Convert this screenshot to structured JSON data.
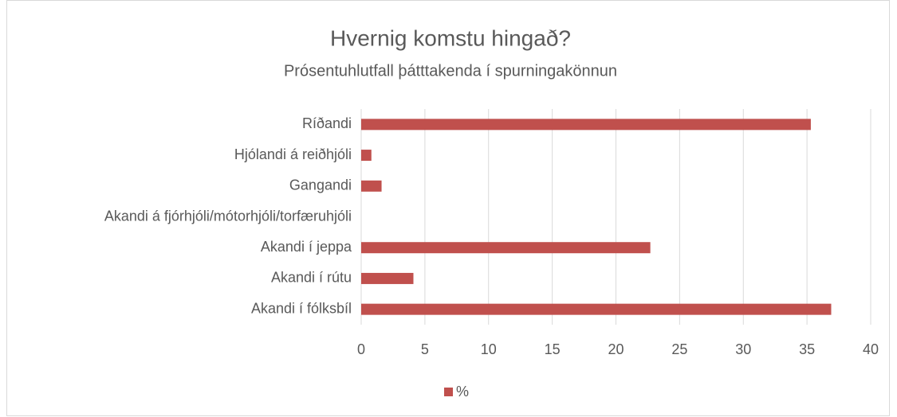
{
  "chart_data": {
    "type": "bar",
    "orientation": "horizontal",
    "title": "Hvernig komstu hingað?",
    "subtitle": "Prósentuhlutfall þátttakenda í spurningakönnun",
    "categories": [
      "Ríðandi",
      "Hjólandi á reiðhjóli",
      "Gangandi",
      "Akandi á fjórhjóli/mótorhjóli/torfæruhjóli",
      "Akandi í jeppa",
      "Akandi í rútu",
      "Akandi í fólksbíl"
    ],
    "series": [
      {
        "name": "%",
        "color": "#c0504d",
        "values": [
          35.3,
          0.8,
          1.6,
          0,
          22.7,
          4.1,
          36.9
        ]
      }
    ],
    "xlim": [
      0,
      40
    ],
    "xticks": [
      0,
      5,
      10,
      15,
      20,
      25,
      30,
      35,
      40
    ],
    "grid": true,
    "legend": "bottom"
  }
}
